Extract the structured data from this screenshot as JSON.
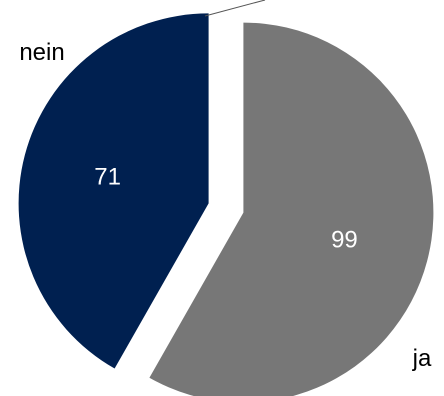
{
  "chart_data": {
    "type": "pie",
    "exploded": true,
    "legend": "none",
    "slices": [
      {
        "label": "ja",
        "value": 99,
        "color": "#777777"
      },
      {
        "label": "nein",
        "value": 71,
        "color": "#002050"
      }
    ]
  }
}
